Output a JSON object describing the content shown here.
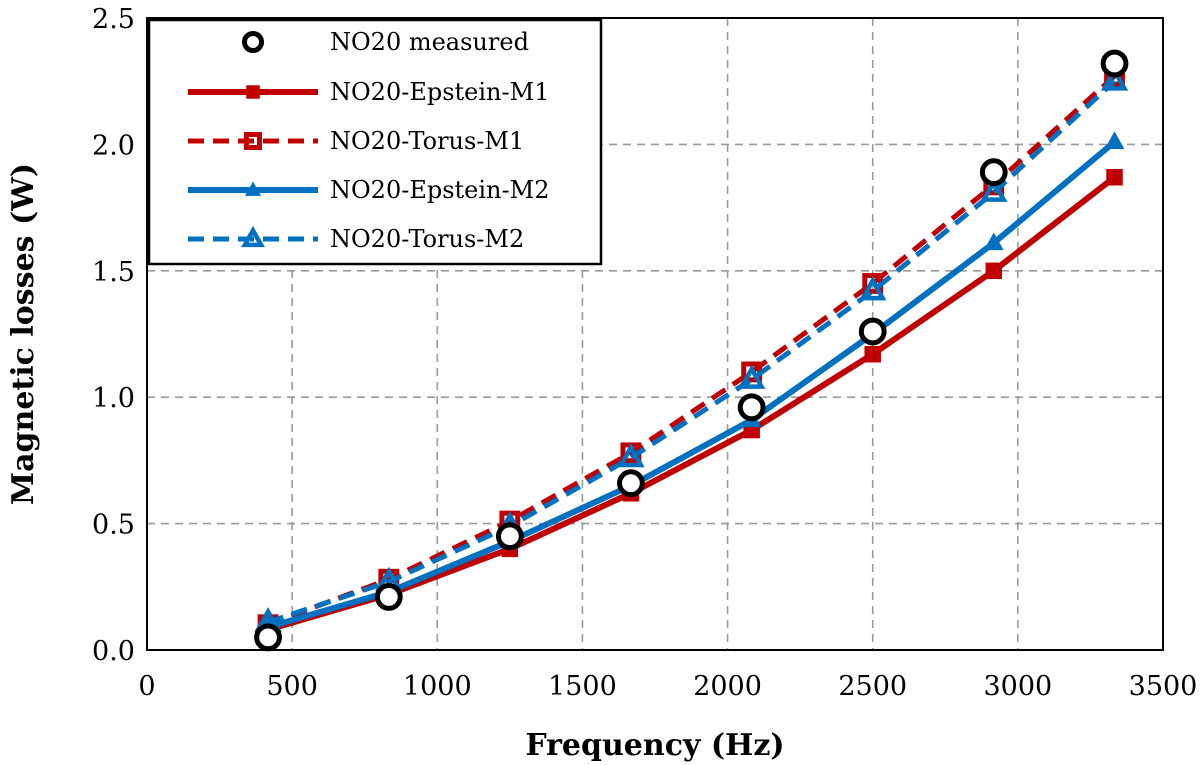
{
  "chart_data": {
    "type": "line",
    "xlabel": "Frequency (Hz)",
    "ylabel": "Magnetic losses (W)",
    "xlim": [
      0,
      3500
    ],
    "ylim": [
      0,
      2.5
    ],
    "xticks": [
      "0",
      "500",
      "1000",
      "1500",
      "2000",
      "2500",
      "3000",
      "3500"
    ],
    "yticks": [
      "0.0",
      "0.5",
      "1.0",
      "1.5",
      "2.0",
      "2.5"
    ],
    "grid": true,
    "grid_style": "dashed",
    "legend_position": "top-left",
    "x": [
      417,
      833,
      1250,
      1667,
      2083,
      2500,
      2917,
      3333
    ],
    "series": [
      {
        "name": "NO20 measured",
        "color": "#000000",
        "line": "none",
        "marker": "open-circle",
        "values": [
          0.05,
          0.21,
          0.45,
          0.66,
          0.96,
          1.26,
          1.89,
          2.32
        ]
      },
      {
        "name": "NO20-Epstein-M1",
        "color": "#c00000",
        "line": "solid",
        "marker": "square",
        "values": [
          0.08,
          0.22,
          0.4,
          0.62,
          0.87,
          1.17,
          1.5,
          1.87
        ]
      },
      {
        "name": "NO20-Torus-M1",
        "color": "#c00000",
        "line": "dashed",
        "marker": "open-square",
        "values": [
          0.1,
          0.28,
          0.51,
          0.78,
          1.1,
          1.45,
          1.84,
          2.27
        ]
      },
      {
        "name": "NO20-Epstein-M2",
        "color": "#0070c0",
        "line": "solid",
        "marker": "triangle",
        "values": [
          0.09,
          0.23,
          0.43,
          0.65,
          0.91,
          1.25,
          1.61,
          2.01
        ]
      },
      {
        "name": "NO20-Torus-M2",
        "color": "#0070c0",
        "line": "dashed",
        "marker": "open-triangle",
        "values": [
          0.11,
          0.27,
          0.49,
          0.76,
          1.07,
          1.42,
          1.81,
          2.25
        ]
      }
    ]
  }
}
